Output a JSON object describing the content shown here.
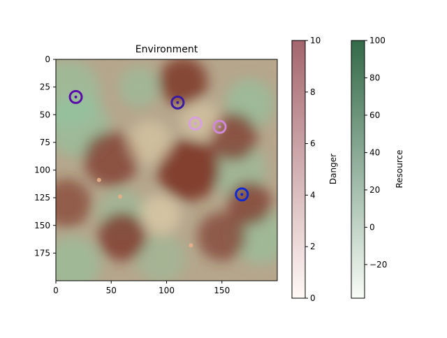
{
  "chart_data": {
    "type": "heatmap",
    "title": "Environment",
    "xlabel": "",
    "ylabel": "",
    "xlim": [
      0,
      200
    ],
    "ylim": [
      200,
      0
    ],
    "x_ticks": [
      "0",
      "50",
      "100",
      "150"
    ],
    "y_ticks": [
      "0",
      "25",
      "50",
      "75",
      "100",
      "125",
      "150",
      "175"
    ],
    "x_tick_values": [
      0,
      50,
      100,
      150
    ],
    "y_tick_values": [
      0,
      25,
      50,
      75,
      100,
      125,
      150,
      175
    ],
    "colorbars": [
      {
        "label": "Danger",
        "range": [
          0,
          10
        ],
        "ticks": [
          "0",
          "2",
          "4",
          "6",
          "8",
          "10"
        ],
        "tick_values": [
          0,
          2,
          4,
          6,
          8,
          10
        ],
        "colormap": "Reds",
        "low_color": "#fff5f0",
        "high_color": "#67000d"
      },
      {
        "label": "Resource",
        "range": [
          -38,
          100
        ],
        "ticks": [
          "−20",
          "0",
          "20",
          "40",
          "60",
          "80",
          "100"
        ],
        "tick_values": [
          -20,
          0,
          20,
          40,
          60,
          80,
          100
        ],
        "colormap": "Greens",
        "low_color": "#f7fcf5",
        "high_color": "#00441b"
      }
    ],
    "agents": [
      {
        "x": 18,
        "y": 34,
        "color": "#5a0ca8"
      },
      {
        "x": 110,
        "y": 39,
        "color": "#3a1aa0"
      },
      {
        "x": 126,
        "y": 58,
        "color": "#d8a0e0"
      },
      {
        "x": 148,
        "y": 61,
        "color": "#d088d8"
      },
      {
        "x": 168,
        "y": 122,
        "color": "#1028d0"
      }
    ],
    "small_points": [
      {
        "x": 39,
        "y": 109
      },
      {
        "x": 58,
        "y": 124
      },
      {
        "x": 122,
        "y": 168
      }
    ],
    "blobs": [
      {
        "x": 10,
        "y": 30,
        "r": 30,
        "kind": "resource",
        "level": 0.55
      },
      {
        "x": 20,
        "y": 60,
        "r": 28,
        "kind": "resource",
        "level": 0.6
      },
      {
        "x": 15,
        "y": 185,
        "r": 25,
        "kind": "resource",
        "level": 0.55
      },
      {
        "x": 75,
        "y": 25,
        "r": 18,
        "kind": "resource",
        "level": 0.5
      },
      {
        "x": 60,
        "y": 140,
        "r": 22,
        "kind": "resource",
        "level": 0.45
      },
      {
        "x": 175,
        "y": 40,
        "r": 22,
        "kind": "resource",
        "level": 0.6
      },
      {
        "x": 165,
        "y": 100,
        "r": 25,
        "kind": "resource",
        "level": 0.5
      },
      {
        "x": 185,
        "y": 160,
        "r": 25,
        "kind": "resource",
        "level": 0.55
      },
      {
        "x": 95,
        "y": 180,
        "r": 22,
        "kind": "resource",
        "level": 0.4
      },
      {
        "x": 115,
        "y": 20,
        "r": 22,
        "kind": "danger",
        "level": 0.8
      },
      {
        "x": 120,
        "y": 100,
        "r": 28,
        "kind": "danger",
        "level": 0.85
      },
      {
        "x": 160,
        "y": 70,
        "r": 22,
        "kind": "danger",
        "level": 0.7
      },
      {
        "x": 50,
        "y": 90,
        "r": 25,
        "kind": "danger",
        "level": 0.7
      },
      {
        "x": 60,
        "y": 160,
        "r": 22,
        "kind": "danger",
        "level": 0.75
      },
      {
        "x": 175,
        "y": 130,
        "r": 20,
        "kind": "danger",
        "level": 0.7
      },
      {
        "x": 150,
        "y": 160,
        "r": 22,
        "kind": "danger",
        "level": 0.65
      },
      {
        "x": 10,
        "y": 130,
        "r": 22,
        "kind": "danger",
        "level": 0.6
      },
      {
        "x": 95,
        "y": 140,
        "r": 18,
        "kind": "light",
        "level": 0.6
      },
      {
        "x": 85,
        "y": 75,
        "r": 20,
        "kind": "light",
        "level": 0.5
      },
      {
        "x": 130,
        "y": 55,
        "r": 18,
        "kind": "light",
        "level": 0.5
      }
    ]
  }
}
